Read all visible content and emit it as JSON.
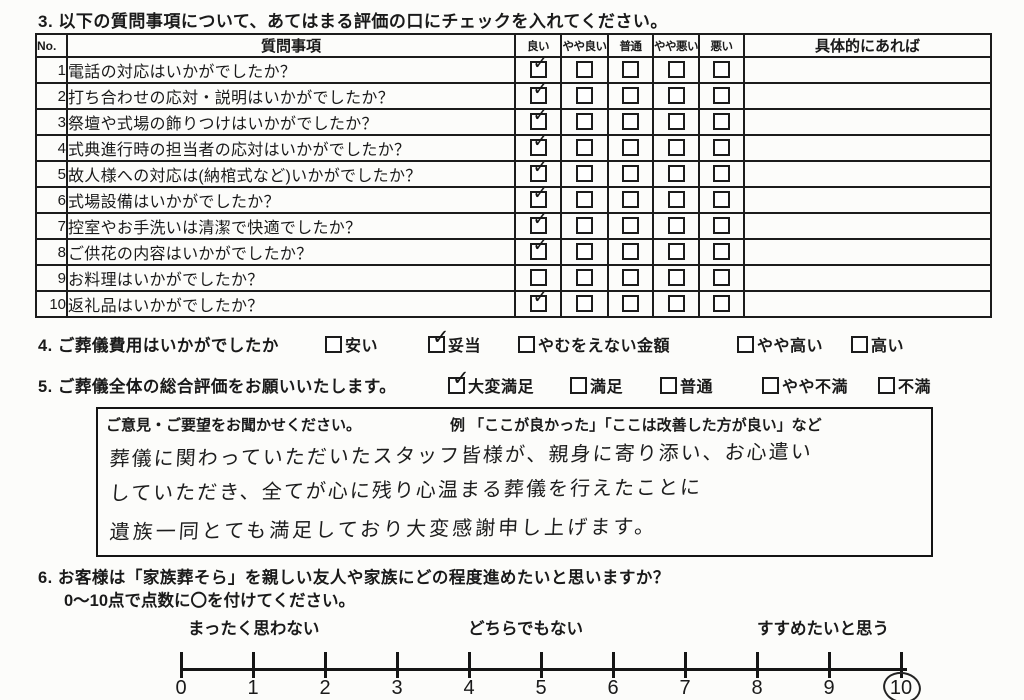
{
  "page": {
    "colors": {
      "paper": "#fcfcfa",
      "ink": "#1a1a1a",
      "border": "#1c1c1c"
    }
  },
  "section3": {
    "title": "3. 以下の質問事項について、あてはまる評価の口にチェックを入れてください。",
    "table": {
      "headers": {
        "no": "No.",
        "question": "質問事項",
        "ratings": [
          "良い",
          "やや良い",
          "普通",
          "やや悪い",
          "悪い"
        ],
        "comment": "具体的にあれば"
      },
      "rows": [
        {
          "no": "1",
          "question": "電話の対応はいかがでしたか？",
          "checked_index": 0,
          "comment": ""
        },
        {
          "no": "2",
          "question": "打ち合わせの応対・説明はいかがでしたか？",
          "checked_index": 0,
          "comment": ""
        },
        {
          "no": "3",
          "question": "祭壇や式場の飾りつけはいかがでしたか？",
          "checked_index": 0,
          "comment": ""
        },
        {
          "no": "4",
          "question": "式典進行時の担当者の応対はいかがでしたか？",
          "checked_index": 0,
          "comment": ""
        },
        {
          "no": "5",
          "question": "故人様への対応は(納棺式など)いかがでしたか？",
          "checked_index": 0,
          "comment": ""
        },
        {
          "no": "6",
          "question": "式場設備はいかがでしたか？",
          "checked_index": 0,
          "comment": ""
        },
        {
          "no": "7",
          "question": "控室やお手洗いは清潔で快適でしたか？",
          "checked_index": 0,
          "comment": ""
        },
        {
          "no": "8",
          "question": "ご供花の内容はいかがでしたか？",
          "checked_index": 0,
          "comment": ""
        },
        {
          "no": "9",
          "question": "お料理はいかがでしたか？",
          "checked_index": null,
          "comment": ""
        },
        {
          "no": "10",
          "question": "返礼品はいかがでしたか？",
          "checked_index": 0,
          "comment": ""
        }
      ]
    }
  },
  "section4": {
    "title": "4. ご葬儀費用はいかがでしたか",
    "options": [
      {
        "label": "安い",
        "checked": false
      },
      {
        "label": "妥当",
        "checked": true
      },
      {
        "label": "やむをえない金額",
        "checked": false
      },
      {
        "label": "やや高い",
        "checked": false
      },
      {
        "label": "高い",
        "checked": false
      }
    ]
  },
  "section5": {
    "title": "5. ご葬儀全体の総合評価をお願いいたします。",
    "options": [
      {
        "label": "大変満足",
        "checked": true
      },
      {
        "label": "満足",
        "checked": false
      },
      {
        "label": "普通",
        "checked": false
      },
      {
        "label": "やや不満",
        "checked": false
      },
      {
        "label": "不満",
        "checked": false
      }
    ]
  },
  "comment_box": {
    "prompt": "ご意見・ご要望をお聞かせください。",
    "example": "例 「ここが良かった」「ここは改善した方が良い」など",
    "handwritten_lines": [
      "葬儀に関わっていただいたスタッフ皆様が、親身に寄り添い、お心遣い",
      "していただき、全てが心に残り心温まる葬儀を行えたことに",
      "遺族一同とても満足しており大変感謝申し上げます。"
    ]
  },
  "section6": {
    "title": "6. お客様は「家族葬そら」を親しい友人や家族にどの程度進めたいと思いますか？",
    "subtitle": "0～10点で点数に〇を付けてください。",
    "scale": {
      "labels": [
        "まったく思わない",
        "どちらでもない",
        "すすめたいと思う"
      ],
      "ticks": [
        "0",
        "1",
        "2",
        "3",
        "4",
        "5",
        "6",
        "7",
        "8",
        "9",
        "10"
      ],
      "selected": "10"
    }
  },
  "icons": {
    "check_mark": "✓"
  }
}
